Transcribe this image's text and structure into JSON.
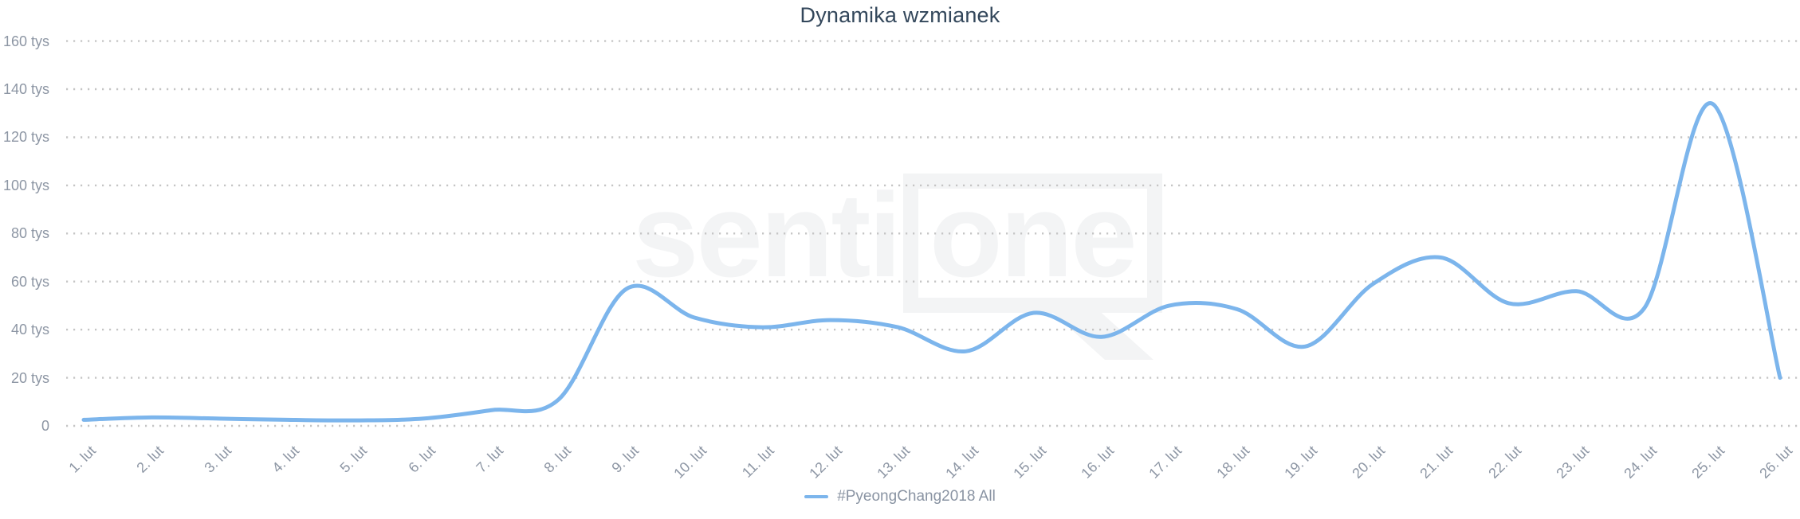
{
  "title": "Dynamika wzmianek",
  "legend": {
    "items": [
      {
        "label": "#PyeongChang2018 All",
        "color": "#7cb5ec"
      }
    ]
  },
  "watermark": {
    "text_left": "senti",
    "text_boxed": "one"
  },
  "colors": {
    "line": "#7cb5ec",
    "title": "#33475b",
    "axis_label": "#8d96a4",
    "grid_dot": "#c5c5c5",
    "watermark": "#f3f4f5"
  },
  "chart_data": {
    "type": "line",
    "style": "spline",
    "title": "Dynamika wzmianek",
    "unit": "tys (thousands of mentions)",
    "categories": [
      "1. lut",
      "2. lut",
      "3. lut",
      "4. lut",
      "5. lut",
      "6. lut",
      "7. lut",
      "8. lut",
      "9. lut",
      "10. lut",
      "11. lut",
      "12. lut",
      "13. lut",
      "14. lut",
      "15. lut",
      "16. lut",
      "17. lut",
      "18. lut",
      "19. lut",
      "20. lut",
      "21. lut",
      "22. lut",
      "23. lut",
      "24. lut",
      "25. lut",
      "26. lut"
    ],
    "series": [
      {
        "name": "#PyeongChang2018 All",
        "values_tys": [
          2.5,
          3.5,
          3,
          2.5,
          2.3,
          3,
          6.5,
          11,
          57,
          45,
          41,
          44,
          41,
          31,
          47,
          37,
          50,
          48.5,
          33,
          59,
          70,
          51,
          56,
          49,
          134,
          20
        ]
      }
    ],
    "ylim_tys": [
      0,
      160
    ],
    "ytick_step_tys": 20,
    "ytick_labels": [
      "0",
      "20 tys",
      "40 tys",
      "60 tys",
      "80 tys",
      "100 tys",
      "120 tys",
      "140 tys",
      "160 tys"
    ],
    "xlabel": "",
    "ylabel": "",
    "grid": "dotted-horizontal",
    "legend_position": "bottom-center"
  }
}
